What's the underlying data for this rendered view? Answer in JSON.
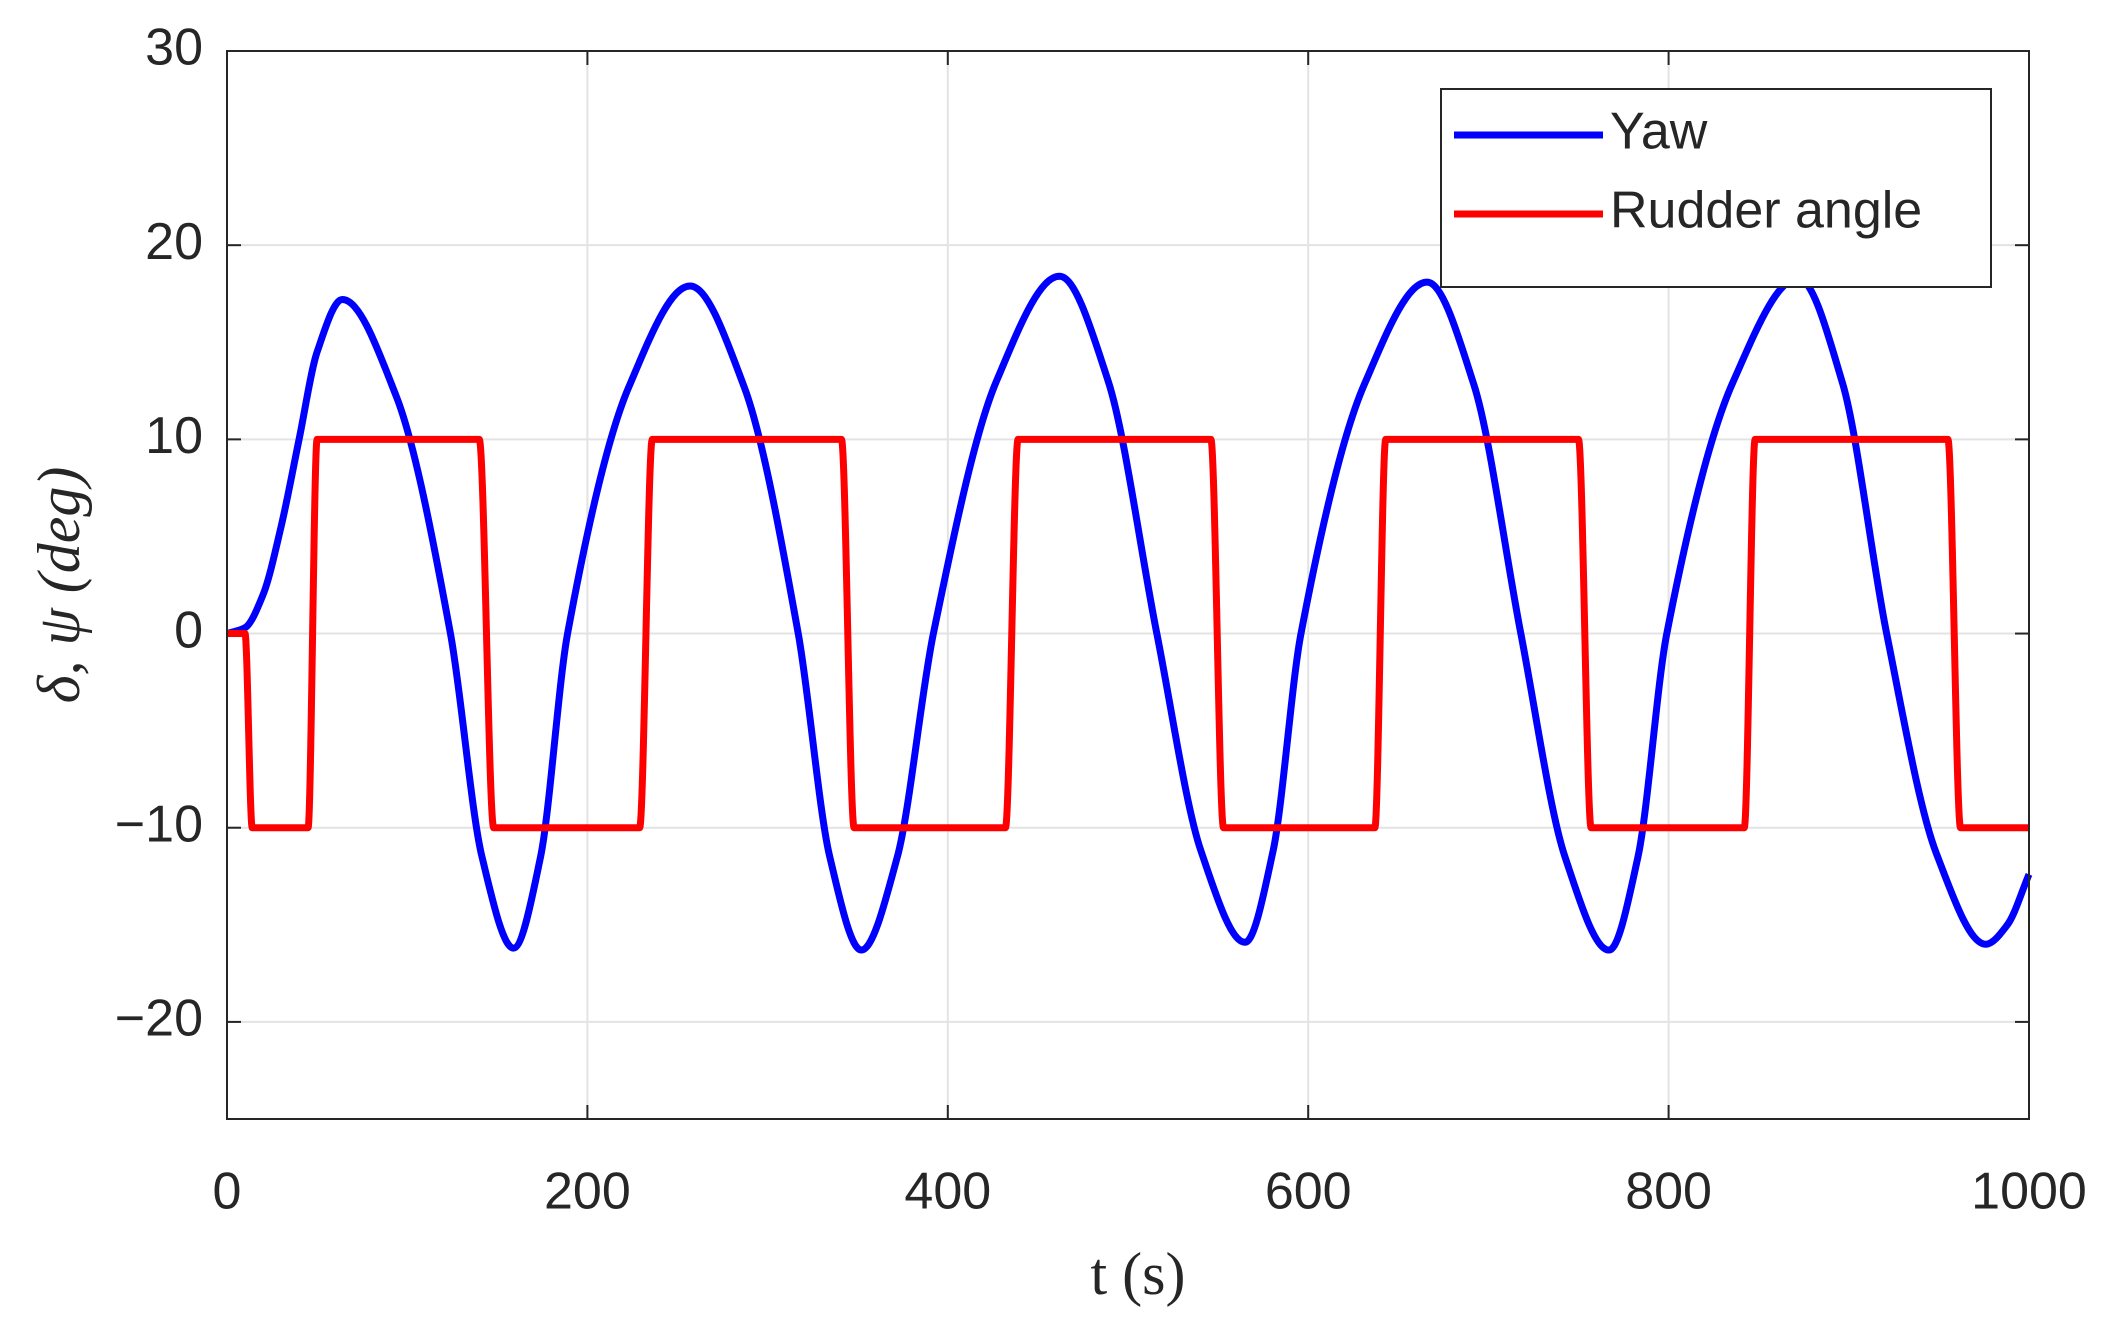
{
  "chart_data": {
    "type": "line",
    "xlabel": "t (s)",
    "ylabel": "δ, ψ (deg)",
    "xlim": [
      0,
      1000
    ],
    "xticks": [
      0,
      200,
      400,
      600,
      800,
      1000
    ],
    "ylim": [
      -25,
      30
    ],
    "yticks": [
      30,
      20,
      10,
      0,
      {
        "value": -10,
        "label": "−10"
      },
      {
        "value": -20,
        "label": "−20"
      }
    ],
    "grid": true,
    "legend": "upper right",
    "series": [
      {
        "name": "Yaw",
        "color": "#0000ff",
        "x": [
          0,
          10,
          20,
          30,
          40,
          50,
          64,
          94,
          124,
          141.5,
          159,
          174,
          189,
          223,
          257,
          287,
          317,
          334.5,
          352,
          372,
          392,
          427,
          462,
          489,
          516,
          540.5,
          565,
          580.5,
          596,
          631,
          666,
          692,
          718,
          742.5,
          767,
          783,
          799,
          835.5,
          872,
          896.5,
          921,
          948.5,
          976,
          988,
          1000
        ],
        "values": [
          0,
          0.3,
          2,
          5.5,
          10,
          14.5,
          17.2,
          12.2,
          0,
          -11.5,
          -16.2,
          -11.5,
          0,
          12.7,
          17.9,
          12.7,
          0,
          -11.5,
          -16.3,
          -11.5,
          0,
          13.0,
          18.4,
          13.0,
          0,
          -11.2,
          -15.9,
          -11.2,
          0,
          12.8,
          18.1,
          12.8,
          0,
          -11.5,
          -16.3,
          -11.5,
          0,
          12.9,
          18.3,
          12.9,
          0,
          -11.3,
          -16.0,
          -15.0,
          -12.4
        ]
      },
      {
        "name": "Rudder angle",
        "color": "#ff0000",
        "x": [
          0,
          10,
          14,
          45,
          50,
          140,
          148,
          229,
          236,
          341,
          348,
          432,
          439,
          546,
          553,
          637,
          643,
          750,
          757,
          842,
          848,
          955,
          962,
          1000
        ],
        "values": [
          0,
          0,
          -10,
          -10,
          10,
          10,
          -10,
          -10,
          10,
          10,
          -10,
          -10,
          10,
          10,
          -10,
          -10,
          10,
          10,
          -10,
          -10,
          10,
          10,
          -10,
          -10
        ]
      }
    ]
  }
}
